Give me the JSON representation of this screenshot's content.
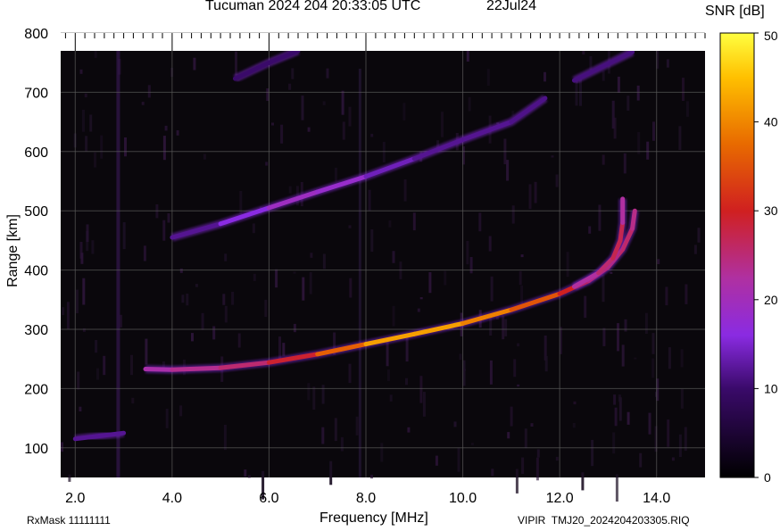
{
  "header": {
    "title": "Tucuman 2024 204 20:33:05 UTC",
    "date": "22Jul24",
    "rxmask": "RxMask 11111111",
    "file": "VIPIR  TMJ20_2024204203305.RIQ"
  },
  "chart_data": {
    "type": "heatmap",
    "title": "Tucuman 2024 204 20:33:05 UTC",
    "xlabel": "Frequency [MHz]",
    "ylabel": "Range [km]",
    "colorbar_label": "SNR [dB]",
    "xlim": [
      1.7,
      15.0
    ],
    "ylim": [
      50,
      800
    ],
    "x_ticks": [
      "2.0",
      "4.0",
      "6.0",
      "8.0",
      "10.0",
      "12.0",
      "14.0"
    ],
    "y_ticks": [
      "100",
      "200",
      "300",
      "400",
      "500",
      "600",
      "700",
      "800"
    ],
    "colorbar_range": [
      0,
      50
    ],
    "colorbar_ticks": [
      "0",
      "10",
      "20",
      "30",
      "40",
      "50"
    ],
    "grid": true,
    "traces": [
      {
        "name": "",
        "points": [
          [
            3.45,
            233
          ],
          [
            4.0,
            232
          ],
          [
            5.0,
            235
          ],
          [
            6.0,
            244
          ],
          [
            7.0,
            258
          ],
          [
            8.0,
            275
          ],
          [
            9.0,
            292
          ],
          [
            10.0,
            310
          ],
          [
            11.0,
            333
          ],
          [
            12.0,
            360
          ],
          [
            12.6,
            382
          ],
          [
            13.0,
            405
          ],
          [
            13.3,
            435
          ],
          [
            13.5,
            470
          ],
          [
            13.55,
            500
          ]
        ],
        "snr": [
          20,
          22,
          24,
          26,
          32,
          40,
          44,
          40,
          38,
          32,
          28,
          26,
          26,
          25,
          22
        ]
      },
      {
        "name": "",
        "points": [
          [
            12.3,
            372
          ],
          [
            12.8,
            395
          ],
          [
            13.1,
            420
          ],
          [
            13.25,
            450
          ],
          [
            13.3,
            480
          ],
          [
            13.3,
            520
          ]
        ],
        "snr": [
          20,
          24,
          26,
          28,
          26,
          18
        ]
      },
      {
        "name": "",
        "points": [
          [
            4.0,
            455
          ],
          [
            5.0,
            478
          ],
          [
            6.0,
            505
          ],
          [
            7.0,
            532
          ],
          [
            8.0,
            558
          ],
          [
            9.0,
            588
          ],
          [
            10.0,
            620
          ],
          [
            11.0,
            650
          ],
          [
            11.7,
            690
          ]
        ],
        "snr": [
          10,
          14,
          18,
          20,
          16,
          12,
          12,
          12,
          11
        ]
      },
      {
        "name": "",
        "points": [
          [
            2.0,
            115
          ],
          [
            2.5,
            120
          ],
          [
            3.0,
            125
          ]
        ],
        "snr": [
          12,
          12,
          12
        ]
      },
      {
        "name": "",
        "points": [
          [
            5.3,
            723
          ],
          [
            6.0,
            750
          ],
          [
            6.6,
            770
          ]
        ],
        "snr": [
          10,
          10,
          10
        ]
      },
      {
        "name": "",
        "points": [
          [
            12.3,
            720
          ],
          [
            13.0,
            748
          ],
          [
            13.5,
            768
          ]
        ],
        "snr": [
          11,
          11,
          11
        ]
      }
    ]
  }
}
